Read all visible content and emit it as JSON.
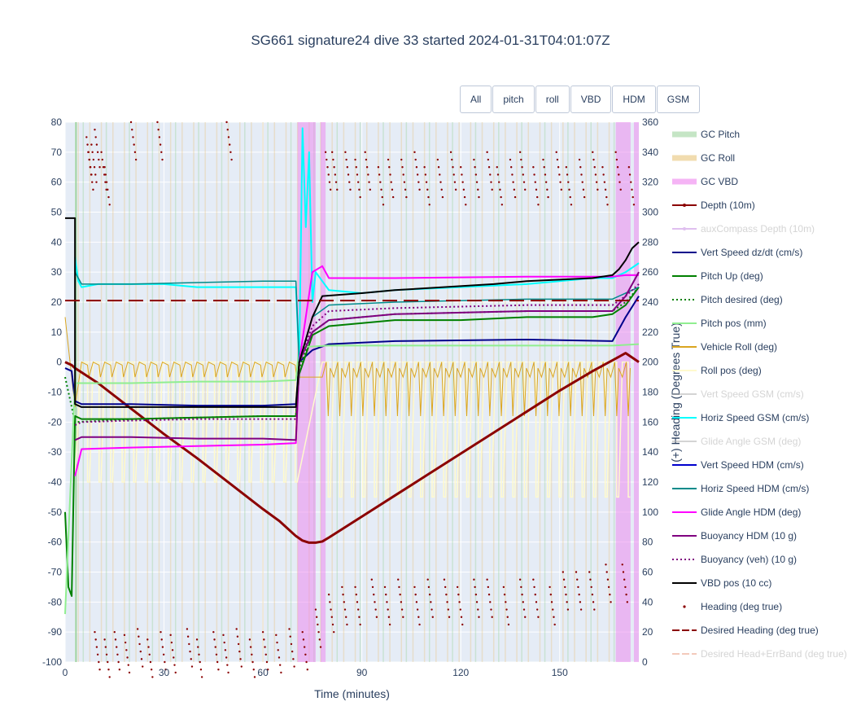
{
  "title": "SG661 signature24 dive 33 started 2024-01-31T04:01:07Z",
  "buttons": [
    {
      "label": "All"
    },
    {
      "label": "pitch"
    },
    {
      "label": "roll"
    },
    {
      "label": "VBD"
    },
    {
      "label": "HDM"
    },
    {
      "label": "GSM"
    }
  ],
  "colors": {
    "plot_bg": "#e5ecf6",
    "grid": "#ffffff",
    "gc_pitch": "#9fd49f",
    "gc_roll": "#e8c47a",
    "gc_vbd": "#ee82ee",
    "depth": "#8b0000",
    "aux_depth": "#c080e0",
    "vert_dzdt": "#00008b",
    "pitch_up": "#008000",
    "pitch_pos": "#90ee90",
    "vehicle_roll": "#daa520",
    "roll_pos": "#fffacd",
    "horiz_gsm": "#00ffff",
    "vert_hdm": "#0000cd",
    "horiz_hdm": "#008b8b",
    "glide_hdm": "#ff00ff",
    "buoy": "#800080",
    "vbd": "#000000",
    "heading": "#8b0000",
    "desired_err": "#e9967a"
  },
  "chart_data": {
    "type": "line",
    "xlabel": "Time (minutes)",
    "ylabel": "",
    "y2label": "(+) Heading (Degrees True)",
    "xlim": [
      0,
      174
    ],
    "ylim": [
      -100,
      80
    ],
    "y2lim": [
      0,
      360
    ],
    "x_ticks": [
      0,
      30,
      60,
      90,
      120,
      150
    ],
    "y_ticks": [
      -100,
      -90,
      -80,
      -70,
      -60,
      -50,
      -40,
      -30,
      -20,
      -10,
      0,
      10,
      20,
      30,
      40,
      50,
      60,
      70,
      80
    ],
    "y2_ticks": [
      0,
      20,
      40,
      60,
      80,
      100,
      120,
      140,
      160,
      180,
      200,
      220,
      240,
      260,
      280,
      300,
      320,
      340,
      360
    ],
    "legend": [
      {
        "name": "GC Pitch",
        "key": "gc_pitch",
        "style": "band",
        "visible": true
      },
      {
        "name": "GC Roll",
        "key": "gc_roll",
        "style": "band",
        "visible": true
      },
      {
        "name": "GC VBD",
        "key": "gc_vbd",
        "style": "band",
        "visible": true
      },
      {
        "name": "Depth (10m)",
        "key": "depth",
        "style": "line-marker",
        "visible": true
      },
      {
        "name": "auxCompass Depth (10m)",
        "key": "aux_depth",
        "style": "line-marker",
        "visible": false
      },
      {
        "name": "Vert Speed dz/dt (cm/s)",
        "key": "vert_dzdt",
        "style": "line",
        "visible": true
      },
      {
        "name": "Pitch Up (deg)",
        "key": "pitch_up",
        "style": "line",
        "visible": true
      },
      {
        "name": "Pitch desired (deg)",
        "key": "pitch_up",
        "style": "dot",
        "visible": true
      },
      {
        "name": "Pitch pos (mm)",
        "key": "pitch_pos",
        "style": "line",
        "visible": true
      },
      {
        "name": "Vehicle Roll (deg)",
        "key": "vehicle_roll",
        "style": "line",
        "visible": true
      },
      {
        "name": "Roll pos (deg)",
        "key": "roll_pos",
        "style": "line",
        "visible": true
      },
      {
        "name": "Vert Speed GSM (cm/s)",
        "key": "vert_gsm",
        "style": "line",
        "visible": false
      },
      {
        "name": "Horiz Speed GSM (cm/s)",
        "key": "horiz_gsm",
        "style": "line",
        "visible": true
      },
      {
        "name": "Glide Angle GSM (deg)",
        "key": "glide_gsm",
        "style": "line",
        "visible": false
      },
      {
        "name": "Vert Speed HDM (cm/s)",
        "key": "vert_hdm",
        "style": "line",
        "visible": true
      },
      {
        "name": "Horiz Speed HDM (cm/s)",
        "key": "horiz_hdm",
        "style": "line",
        "visible": true
      },
      {
        "name": "Glide Angle HDM (deg)",
        "key": "glide_hdm",
        "style": "line",
        "visible": true
      },
      {
        "name": "Buoyancy HDM (10 g)",
        "key": "buoy",
        "style": "line",
        "visible": true
      },
      {
        "name": "Buoyancy (veh) (10 g)",
        "key": "buoy",
        "style": "dot",
        "visible": true
      },
      {
        "name": "VBD pos (10 cc)",
        "key": "vbd",
        "style": "line",
        "visible": true
      },
      {
        "name": "Heading (deg true)",
        "key": "heading",
        "style": "marker",
        "visible": true
      },
      {
        "name": "Desired Heading (deg true)",
        "key": "heading",
        "style": "dash",
        "visible": true
      },
      {
        "name": "Desired Head+ErrBand (deg true)",
        "key": "desired_err",
        "style": "dash",
        "visible": false
      }
    ],
    "vbd_bands": [
      [
        70.5,
        76
      ],
      [
        77.5,
        79
      ],
      [
        167,
        171.5
      ],
      [
        172.5,
        174
      ]
    ],
    "series": [
      {
        "name": "Depth (10m)",
        "key": "depth",
        "width": 3,
        "x": [
          0,
          2,
          3,
          10,
          20,
          30,
          40,
          50,
          60,
          65,
          70,
          72,
          74,
          76,
          78,
          80,
          90,
          100,
          110,
          120,
          130,
          140,
          150,
          160,
          170,
          174
        ],
        "y": [
          0,
          -1,
          -2,
          -7,
          -15.5,
          -24,
          -32,
          -40.5,
          -49,
          -53,
          -58,
          -59.5,
          -60.2,
          -60.2,
          -59.8,
          -58.5,
          -51.5,
          -44.5,
          -37.5,
          -30.5,
          -23.5,
          -16.5,
          -9.5,
          -3,
          3,
          0
        ]
      },
      {
        "name": "Vert Speed dz/dt (cm/s)",
        "key": "vert_dzdt",
        "width": 2,
        "x": [
          0,
          2,
          3,
          5,
          20,
          40,
          60,
          70,
          71,
          75,
          80,
          100,
          140,
          166,
          170,
          174
        ],
        "y": [
          -2,
          -3,
          -13,
          -14,
          -14,
          -14.5,
          -14.5,
          -14,
          0,
          4,
          6,
          7,
          7.5,
          7,
          15,
          22
        ]
      },
      {
        "name": "Pitch Up (deg)",
        "key": "pitch_up",
        "width": 2,
        "x": [
          0,
          1,
          2,
          3,
          5,
          20,
          40,
          60,
          70,
          71,
          75,
          80,
          100,
          120,
          140,
          160,
          166,
          170,
          174
        ],
        "y": [
          -50,
          -75,
          -78,
          -18,
          -19,
          -19,
          -18.5,
          -18,
          -18,
          -4,
          9,
          12,
          14,
          14,
          15,
          15,
          16,
          19,
          25
        ]
      },
      {
        "name": "Pitch desired (deg)",
        "key": "pitch_up",
        "width": 2,
        "dash": "2,3",
        "x": [
          0,
          3,
          20,
          40,
          60,
          70,
          71,
          75,
          80,
          100,
          140,
          166,
          170,
          174
        ],
        "y": [
          -5,
          -20,
          -19,
          -18.5,
          -18,
          -18,
          -2,
          10,
          14,
          16,
          17,
          17,
          20,
          25
        ]
      },
      {
        "name": "Pitch pos (mm)",
        "key": "pitch_pos",
        "width": 2,
        "x": [
          0,
          3,
          20,
          40,
          60,
          70,
          71,
          80,
          100,
          140,
          166,
          174
        ],
        "y": [
          -84,
          -7,
          -7,
          -6.5,
          -6.5,
          -6,
          5,
          5.5,
          5.5,
          5.5,
          5.5,
          6
        ]
      },
      {
        "name": "Horiz Speed GSM (cm/s)",
        "key": "horiz_gsm",
        "width": 2,
        "x": [
          3,
          4,
          5,
          10,
          20,
          30,
          40,
          50,
          60,
          70,
          71,
          72,
          73,
          74,
          75,
          76,
          80,
          90,
          100,
          120,
          140,
          150,
          160,
          166,
          170,
          174
        ],
        "y": [
          35,
          27,
          25,
          26,
          26,
          26,
          25,
          25,
          25,
          25,
          0,
          78,
          45,
          70,
          20,
          30,
          24,
          23,
          24,
          25,
          26,
          27,
          28,
          28,
          30,
          33
        ]
      },
      {
        "name": "Horiz Speed HDM (cm/s)",
        "key": "horiz_hdm",
        "width": 1.5,
        "x": [
          3,
          5,
          20,
          40,
          60,
          70,
          71,
          75,
          80,
          100,
          140,
          166,
          170,
          174
        ],
        "y": [
          30,
          26,
          26,
          26.5,
          27,
          27,
          0,
          15,
          19,
          20,
          21,
          21,
          23,
          25
        ]
      },
      {
        "name": "Glide Angle HDM (deg)",
        "key": "glide_hdm",
        "width": 2,
        "x": [
          3,
          5,
          20,
          40,
          60,
          70,
          71,
          75,
          78,
          80,
          100,
          140,
          166,
          170,
          174
        ],
        "y": [
          -38,
          -29,
          -28.5,
          -28,
          -27.5,
          -27,
          0,
          30,
          32,
          28,
          28,
          28.5,
          28.5,
          29,
          29
        ]
      },
      {
        "name": "Buoyancy HDM (10 g)",
        "key": "buoy",
        "width": 2,
        "x": [
          3,
          5,
          20,
          40,
          60,
          70,
          71,
          75,
          80,
          100,
          140,
          166,
          170,
          174
        ],
        "y": [
          -26,
          -25,
          -25,
          -25.5,
          -25.5,
          -26,
          0,
          10,
          14,
          16,
          17,
          17,
          22,
          30
        ]
      },
      {
        "name": "Buoyancy (veh) (10 g)",
        "key": "buoy",
        "width": 2,
        "dash": "2,3",
        "x": [
          3,
          5,
          20,
          40,
          60,
          70,
          71,
          75,
          80,
          100,
          140,
          166,
          170,
          174
        ],
        "y": [
          -21,
          -20,
          -19.5,
          -19,
          -19,
          -19,
          0,
          12,
          17,
          18,
          19,
          19,
          22,
          26
        ]
      },
      {
        "name": "VBD pos (10 cc)",
        "key": "vbd",
        "width": 2,
        "step": true,
        "x": [
          0,
          3,
          3,
          5,
          70,
          71,
          75,
          78,
          90,
          100,
          130,
          140,
          160,
          166,
          168,
          170,
          172,
          174
        ],
        "y": [
          48,
          48,
          -14,
          -15,
          -15,
          0,
          15,
          22,
          23,
          24,
          26,
          27,
          28,
          29,
          31,
          34,
          38,
          40
        ]
      },
      {
        "name": "Desired Heading (deg true)",
        "key": "heading",
        "width": 2,
        "dash": "18,8",
        "axis": "y2",
        "x": [
          0,
          174
        ],
        "y": [
          241,
          241
        ]
      }
    ],
    "heading_markers": {
      "axis": "y2",
      "upper_x": [
        6.5,
        7,
        8,
        9,
        11,
        12,
        20,
        28,
        49,
        79,
        81,
        85,
        88,
        91,
        95,
        98,
        102,
        106,
        109,
        113,
        117,
        120,
        124,
        128,
        131,
        135,
        138,
        142,
        145,
        149,
        152,
        156,
        160,
        163,
        167,
        171
      ],
      "upper_y": [
        350,
        340,
        345,
        355,
        340,
        330,
        360,
        360,
        360,
        340,
        340,
        340,
        335,
        340,
        330,
        335,
        335,
        340,
        330,
        335,
        340,
        330,
        335,
        340,
        330,
        335,
        340,
        330,
        335,
        340,
        330,
        335,
        340,
        330,
        340,
        330
      ],
      "lower_x": [
        9,
        12,
        15,
        18,
        22,
        25,
        29,
        32,
        37,
        40,
        45,
        48,
        52,
        56,
        60,
        64,
        68,
        72,
        76,
        80,
        84,
        88,
        93,
        97,
        101,
        106,
        110,
        115,
        119,
        124,
        128,
        133,
        138,
        142,
        147,
        151,
        155,
        159,
        164,
        169
      ],
      "lower_y": [
        20,
        15,
        20,
        18,
        22,
        15,
        20,
        18,
        22,
        15,
        20,
        18,
        22,
        15,
        20,
        18,
        22,
        20,
        35,
        45,
        50,
        50,
        55,
        50,
        55,
        50,
        55,
        55,
        50,
        55,
        55,
        50,
        55,
        55,
        50,
        60,
        60,
        60,
        65,
        65
      ]
    }
  }
}
